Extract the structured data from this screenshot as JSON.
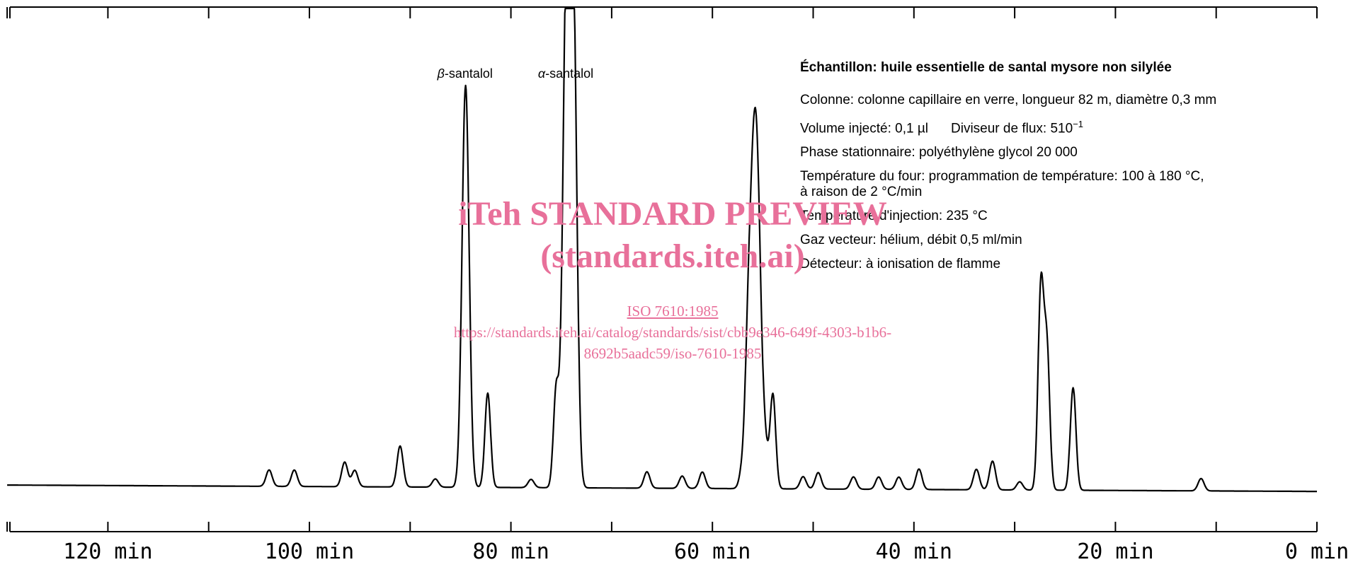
{
  "chart_data": {
    "type": "line",
    "title": "",
    "xlabel": "",
    "ylabel": "",
    "x_axis_direction": "reversed",
    "xlim": [
      130,
      0
    ],
    "x_ticks": [
      120,
      100,
      80,
      60,
      40,
      20,
      0
    ],
    "x_tick_labels": [
      "120 min",
      "100 min",
      "80 min",
      "60 min",
      "40 min",
      "20 min",
      "0 min"
    ],
    "peak_labels": [
      {
        "prefix": "β",
        "text": "-santalol",
        "x": 84.5
      },
      {
        "prefix": "α",
        "text": "-santalol",
        "x": 74.5
      }
    ],
    "baseline": 3,
    "series": [
      {
        "peaks": [
          {
            "x": 104,
            "h": 4
          },
          {
            "x": 101.5,
            "h": 4
          },
          {
            "x": 96.5,
            "h": 6
          },
          {
            "x": 95.5,
            "h": 4
          },
          {
            "x": 91,
            "h": 10
          },
          {
            "x": 87.5,
            "h": 2
          },
          {
            "x": 84.5,
            "h": 98
          },
          {
            "x": 82.3,
            "h": 23
          },
          {
            "x": 78,
            "h": 2
          },
          {
            "x": 75.5,
            "h": 24
          },
          {
            "x": 74.5,
            "h": 120
          },
          {
            "x": 73.8,
            "h": 115
          },
          {
            "x": 66.5,
            "h": 4
          },
          {
            "x": 63,
            "h": 3
          },
          {
            "x": 61,
            "h": 4
          },
          {
            "x": 57,
            "h": 5
          },
          {
            "x": 56.5,
            "h": 25
          },
          {
            "x": 56.0,
            "h": 59
          },
          {
            "x": 55.5,
            "h": 60
          },
          {
            "x": 54.8,
            "h": 10
          },
          {
            "x": 54.0,
            "h": 23
          },
          {
            "x": 51,
            "h": 3
          },
          {
            "x": 49.5,
            "h": 4
          },
          {
            "x": 46,
            "h": 3
          },
          {
            "x": 43.5,
            "h": 3
          },
          {
            "x": 41.5,
            "h": 3
          },
          {
            "x": 39.5,
            "h": 5
          },
          {
            "x": 33.8,
            "h": 5
          },
          {
            "x": 32.2,
            "h": 7
          },
          {
            "x": 29.5,
            "h": 2
          },
          {
            "x": 27.4,
            "h": 49
          },
          {
            "x": 26.8,
            "h": 34
          },
          {
            "x": 24.2,
            "h": 25
          },
          {
            "x": 11.5,
            "h": 3
          }
        ]
      }
    ]
  },
  "info": {
    "title": "Échantillon: huile essentielle de santal mysore non silylée",
    "lines": [
      "Colonne: colonne capillaire en verre, longueur 82 m, diamètre 0,3 mm",
      "Volume injecté: 0,1 µl",
      "Diviseur de flux: 510",
      "−1",
      "Phase stationnaire: polyéthylène glycol 20 000",
      "Température du four: programmation de température: 100 à 180 °C,",
      "à raison de 2 °C/min",
      "Température d'injection: 235 °C",
      "Gaz vecteur: hélium, débit 0,5 ml/min",
      "Détecteur: à ionisation de flamme"
    ]
  },
  "watermark": {
    "line1": "iTeh STANDARD PREVIEW",
    "line2": "(standards.iteh.ai)",
    "line3": "ISO 7610:1985",
    "line4": "https://standards.iteh.ai/catalog/standards/sist/cbb9e346-649f-4303-b1b6-",
    "line5": "8692b5aadc59/iso-7610-1985"
  }
}
